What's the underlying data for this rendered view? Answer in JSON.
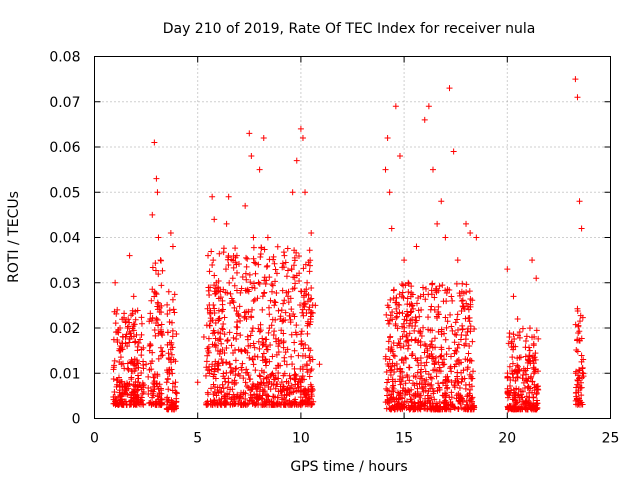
{
  "chart_data": {
    "type": "scatter",
    "title": "Day 210 of 2019, Rate Of TEC Index for receiver nula",
    "xlabel": "GPS time / hours",
    "ylabel": "ROTI / TECUs",
    "xlim": [
      0,
      25
    ],
    "ylim": [
      0,
      0.08
    ],
    "x_ticks": [
      "0",
      "5",
      "10",
      "15",
      "20",
      "25"
    ],
    "y_ticks": [
      "0",
      "0.01",
      "0.02",
      "0.03",
      "0.04",
      "0.05",
      "0.06",
      "0.07",
      "0.08"
    ],
    "grid": true,
    "marker": "plus",
    "color": "#ff0000",
    "series": [
      {
        "x": [
          1.0,
          1.1,
          1.2,
          1.3,
          1.5,
          1.6,
          1.7,
          1.9,
          2.0,
          2.1,
          2.3,
          2.5,
          2.7,
          2.8,
          2.9,
          3.0,
          3.05,
          3.1,
          3.2,
          3.3,
          3.5,
          3.6,
          3.7,
          3.8,
          3.9,
          5.0,
          5.3,
          5.5,
          5.7,
          5.8,
          5.9,
          6.0,
          6.2,
          6.4,
          6.5,
          6.7,
          6.9,
          7.1,
          7.3,
          7.5,
          7.6,
          7.7,
          7.8,
          8.0,
          8.2,
          8.4,
          8.6,
          8.8,
          9.0,
          9.2,
          9.4,
          9.6,
          9.8,
          10.0,
          10.1,
          10.2,
          10.3,
          10.5,
          10.7,
          10.9,
          14.1,
          14.2,
          14.3,
          14.4,
          14.6,
          14.8,
          15.0,
          15.2,
          15.4,
          15.6,
          15.8,
          16.0,
          16.2,
          16.4,
          16.6,
          16.8,
          17.0,
          17.2,
          17.4,
          17.6,
          17.8,
          18.0,
          18.2,
          18.5,
          20.0,
          20.1,
          20.3,
          20.5,
          20.8,
          21.0,
          21.2,
          21.4,
          23.3,
          23.4,
          23.5,
          23.6
        ],
        "y": [
          0.03,
          0.024,
          0.015,
          0.012,
          0.018,
          0.02,
          0.036,
          0.027,
          0.011,
          0.008,
          0.004,
          0.012,
          0.022,
          0.045,
          0.061,
          0.053,
          0.05,
          0.04,
          0.035,
          0.014,
          0.008,
          0.028,
          0.041,
          0.038,
          0.007,
          0.008,
          0.018,
          0.036,
          0.049,
          0.044,
          0.03,
          0.022,
          0.026,
          0.043,
          0.049,
          0.031,
          0.036,
          0.015,
          0.047,
          0.063,
          0.058,
          0.04,
          0.032,
          0.055,
          0.062,
          0.04,
          0.028,
          0.017,
          0.022,
          0.036,
          0.028,
          0.05,
          0.057,
          0.064,
          0.062,
          0.05,
          0.03,
          0.041,
          0.025,
          0.012,
          0.055,
          0.062,
          0.05,
          0.042,
          0.069,
          0.058,
          0.035,
          0.03,
          0.025,
          0.038,
          0.027,
          0.066,
          0.069,
          0.055,
          0.043,
          0.048,
          0.04,
          0.073,
          0.059,
          0.035,
          0.028,
          0.043,
          0.041,
          0.04,
          0.033,
          0.018,
          0.027,
          0.022,
          0.011,
          0.013,
          0.035,
          0.031,
          0.075,
          0.071,
          0.048,
          0.042
        ]
      }
    ],
    "dense_clusters": [
      {
        "x_range": [
          0.9,
          2.4
        ],
        "y_range": [
          0.003,
          0.024
        ]
      },
      {
        "x_range": [
          2.6,
          3.3
        ],
        "y_range": [
          0.003,
          0.035
        ]
      },
      {
        "x_range": [
          3.5,
          4.0
        ],
        "y_range": [
          0.002,
          0.03
        ]
      },
      {
        "x_range": [
          5.4,
          10.6
        ],
        "y_range": [
          0.003,
          0.038
        ]
      },
      {
        "x_range": [
          14.1,
          18.4
        ],
        "y_range": [
          0.002,
          0.03
        ]
      },
      {
        "x_range": [
          20.0,
          21.5
        ],
        "y_range": [
          0.002,
          0.02
        ]
      },
      {
        "x_range": [
          23.3,
          23.7
        ],
        "y_range": [
          0.003,
          0.025
        ]
      }
    ]
  }
}
